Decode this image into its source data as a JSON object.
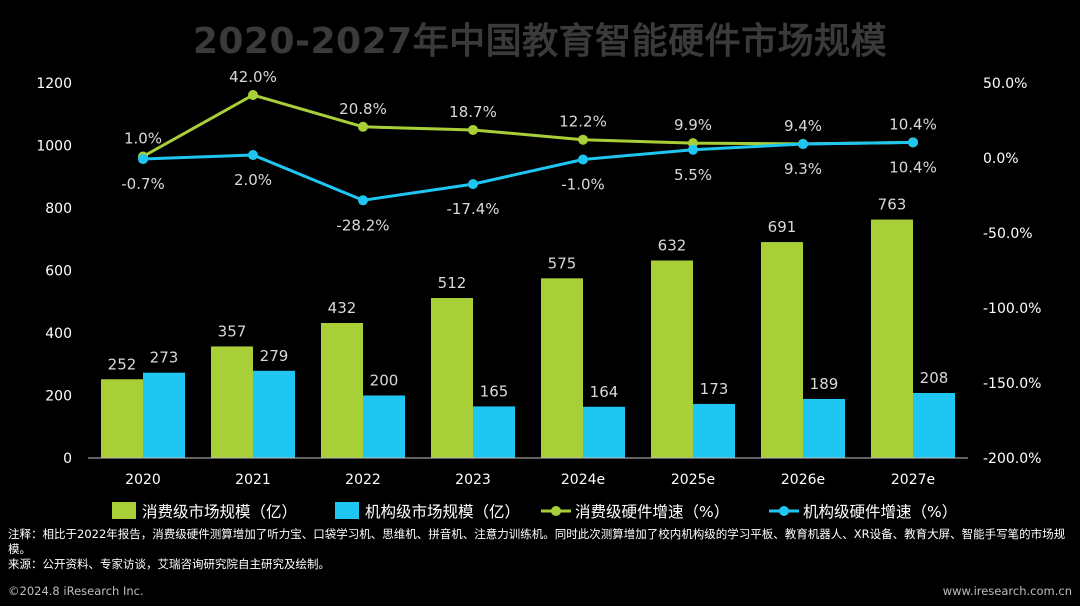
{
  "title": "2020-2027年中国教育智能硬件市场规模",
  "chart_data": {
    "type": "bar+line",
    "categories": [
      "2020",
      "2021",
      "2022",
      "2023",
      "2024e",
      "2025e",
      "2026e",
      "2027e"
    ],
    "left_axis": {
      "ticks": [
        "0",
        "200",
        "400",
        "600",
        "800",
        "1000",
        "1200"
      ],
      "ylim": [
        0,
        1200
      ]
    },
    "right_axis": {
      "ticks": [
        "-200.0%",
        "-150.0%",
        "-100.0%",
        "-50.0%",
        "0.0%",
        "50.0%"
      ],
      "ylim": [
        -200,
        50
      ]
    },
    "series": [
      {
        "name": "消费级市场规模（亿）",
        "type": "bar",
        "axis": "left",
        "color": "#a8cf38",
        "values": [
          252,
          357,
          432,
          512,
          575,
          632,
          691,
          763
        ],
        "labels": [
          "252",
          "357",
          "432",
          "512",
          "575",
          "632",
          "691",
          "763"
        ]
      },
      {
        "name": "机构级市场规模（亿）",
        "type": "bar",
        "axis": "left",
        "color": "#1fc6f2",
        "values": [
          273,
          279,
          200,
          165,
          164,
          173,
          189,
          208
        ],
        "labels": [
          "273",
          "279",
          "200",
          "165",
          "164",
          "173",
          "189",
          "208"
        ]
      },
      {
        "name": "消费级硬件增速（%）",
        "type": "line",
        "axis": "right",
        "color": "#a8cf38",
        "values": [
          1.0,
          42.0,
          20.8,
          18.7,
          12.2,
          9.9,
          9.4,
          10.4
        ],
        "labels": [
          "1.0%",
          "42.0%",
          "20.8%",
          "18.7%",
          "12.2%",
          "9.9%",
          "9.4%",
          "10.4%"
        ]
      },
      {
        "name": "机构级硬件增速（%）",
        "type": "line",
        "axis": "right",
        "color": "#1fc6f2",
        "values": [
          -0.7,
          2.0,
          -28.2,
          -17.4,
          -1.0,
          5.5,
          9.3,
          10.4
        ],
        "labels": [
          "-0.7%",
          "2.0%",
          "-28.2%",
          "-17.4%",
          "-1.0%",
          "5.5%",
          "9.3%",
          "10.4%"
        ]
      }
    ],
    "legend_position": "bottom",
    "grid": false
  },
  "notes": [
    "注释：相比于2022年报告，消费级硬件测算增加了听力宝、口袋学习机、思维机、拼音机、注意力训练机。同时此次测算增加了校内机构级的学习平板、教育机器人、XR设备、教育大屏、智能手写笔的市场规模。",
    "来源：公开资料、专家访谈，艾瑞咨询研究院自主研究及绘制。"
  ],
  "footer": {
    "left": "©2024.8 iResearch Inc.",
    "right": "www.iresearch.com.cn"
  }
}
